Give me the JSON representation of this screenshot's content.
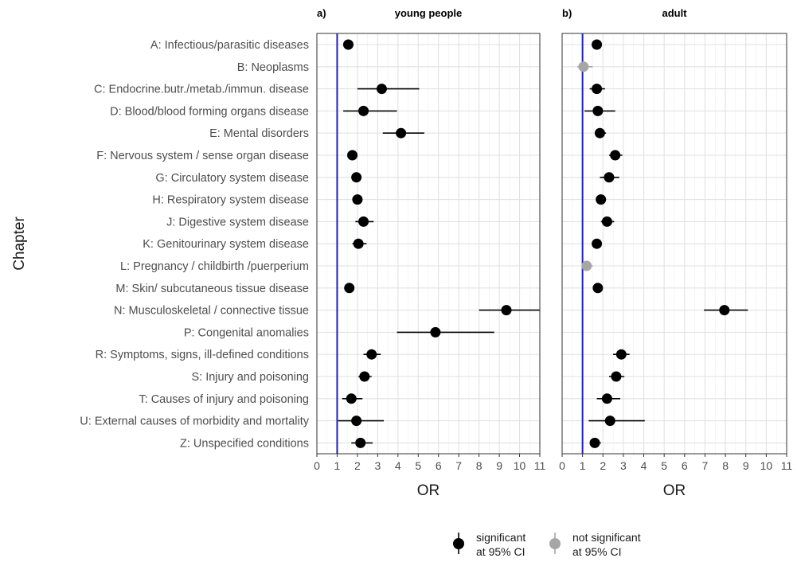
{
  "chart_data": {
    "type": "forest",
    "y_axis_title": "Chapter",
    "categories": [
      "A: Infectious/parasitic diseases",
      "B: Neoplasms",
      "C: Endocrine.butr./metab./immun. disease",
      "D: Blood/blood forming organs disease",
      "E: Mental disorders",
      "F: Nervous system / sense organ disease",
      "G: Circulatory system disease",
      "H: Respiratory system disease",
      "J: Digestive system disease",
      "K: Genitourinary system disease",
      "L: Pregnancy / childbirth /puerperium",
      "M: Skin/ subcutaneous tissue disease",
      "N: Musculoskeletal / connective tissue",
      "P: Congenital anomalies",
      "R: Symptoms, signs, ill-defined conditions",
      "S: Injury and poisoning",
      "T: Causes of injury and poisoning",
      "U: External causes of morbidity and mortality",
      "Z: Unspecified conditions"
    ],
    "reference_line": 1,
    "reference_line_color": "#1f1fbf",
    "xlim": [
      0,
      11
    ],
    "x_ticks": [
      "0",
      "1",
      "2",
      "3",
      "4",
      "5",
      "6",
      "7",
      "8",
      "9",
      "10",
      "11"
    ],
    "panels": [
      {
        "tag": "a)",
        "title": "young people",
        "xlabel": "OR",
        "points": [
          {
            "or": 1.55,
            "lo": 1.35,
            "hi": 1.8,
            "significant": true
          },
          null,
          {
            "or": 3.2,
            "lo": 2.0,
            "hi": 5.05,
            "significant": true
          },
          {
            "or": 2.3,
            "lo": 1.3,
            "hi": 3.95,
            "significant": true
          },
          {
            "or": 4.15,
            "lo": 3.25,
            "hi": 5.3,
            "significant": true
          },
          {
            "or": 1.75,
            "lo": 1.55,
            "hi": 1.95,
            "significant": true
          },
          {
            "or": 1.95,
            "lo": 1.75,
            "hi": 2.2,
            "significant": true
          },
          {
            "or": 2.0,
            "lo": 1.8,
            "hi": 2.2,
            "significant": true
          },
          {
            "or": 2.3,
            "lo": 1.9,
            "hi": 2.8,
            "significant": true
          },
          {
            "or": 2.05,
            "lo": 1.75,
            "hi": 2.45,
            "significant": true
          },
          null,
          {
            "or": 1.6,
            "lo": 1.4,
            "hi": 1.8,
            "significant": true
          },
          {
            "or": 9.35,
            "lo": 8.0,
            "hi": 11.0,
            "significant": true
          },
          {
            "or": 5.85,
            "lo": 3.95,
            "hi": 8.75,
            "significant": true
          },
          {
            "or": 2.7,
            "lo": 2.3,
            "hi": 3.15,
            "significant": true
          },
          {
            "or": 2.35,
            "lo": 2.05,
            "hi": 2.7,
            "significant": true
          },
          {
            "or": 1.7,
            "lo": 1.25,
            "hi": 2.25,
            "significant": true
          },
          {
            "or": 1.95,
            "lo": 1.05,
            "hi": 3.3,
            "significant": true
          },
          {
            "or": 2.15,
            "lo": 1.7,
            "hi": 2.75,
            "significant": true
          }
        ]
      },
      {
        "tag": "b)",
        "title": "adult",
        "xlabel": "OR",
        "points": [
          {
            "or": 1.7,
            "lo": 1.5,
            "hi": 1.95,
            "significant": true
          },
          {
            "or": 1.05,
            "lo": 0.75,
            "hi": 1.5,
            "significant": false
          },
          {
            "or": 1.7,
            "lo": 1.35,
            "hi": 2.1,
            "significant": true
          },
          {
            "or": 1.75,
            "lo": 1.1,
            "hi": 2.6,
            "significant": true
          },
          {
            "or": 1.85,
            "lo": 1.6,
            "hi": 2.15,
            "significant": true
          },
          {
            "or": 2.6,
            "lo": 2.3,
            "hi": 2.95,
            "significant": true
          },
          {
            "or": 2.3,
            "lo": 1.85,
            "hi": 2.8,
            "significant": true
          },
          {
            "or": 1.9,
            "lo": 1.7,
            "hi": 2.15,
            "significant": true
          },
          {
            "or": 2.2,
            "lo": 1.9,
            "hi": 2.55,
            "significant": true
          },
          {
            "or": 1.7,
            "lo": 1.5,
            "hi": 1.95,
            "significant": true
          },
          {
            "or": 1.2,
            "lo": 1.0,
            "hi": 1.5,
            "significant": false
          },
          {
            "or": 1.75,
            "lo": 1.55,
            "hi": 1.95,
            "significant": true
          },
          {
            "or": 7.95,
            "lo": 6.95,
            "hi": 9.1,
            "significant": true
          },
          null,
          {
            "or": 2.9,
            "lo": 2.5,
            "hi": 3.3,
            "significant": true
          },
          {
            "or": 2.65,
            "lo": 2.3,
            "hi": 3.05,
            "significant": true
          },
          {
            "or": 2.2,
            "lo": 1.7,
            "hi": 2.85,
            "significant": true
          },
          {
            "or": 2.35,
            "lo": 1.3,
            "hi": 4.05,
            "significant": true
          },
          {
            "or": 1.6,
            "lo": 1.4,
            "hi": 1.9,
            "significant": true
          }
        ]
      }
    ],
    "legend": [
      {
        "line1": "significant",
        "line2": "at 95% CI",
        "color": "#000000"
      },
      {
        "line1": "not significant",
        "line2": "at 95% CI",
        "color": "#a6a6a6"
      }
    ],
    "grid": true
  }
}
